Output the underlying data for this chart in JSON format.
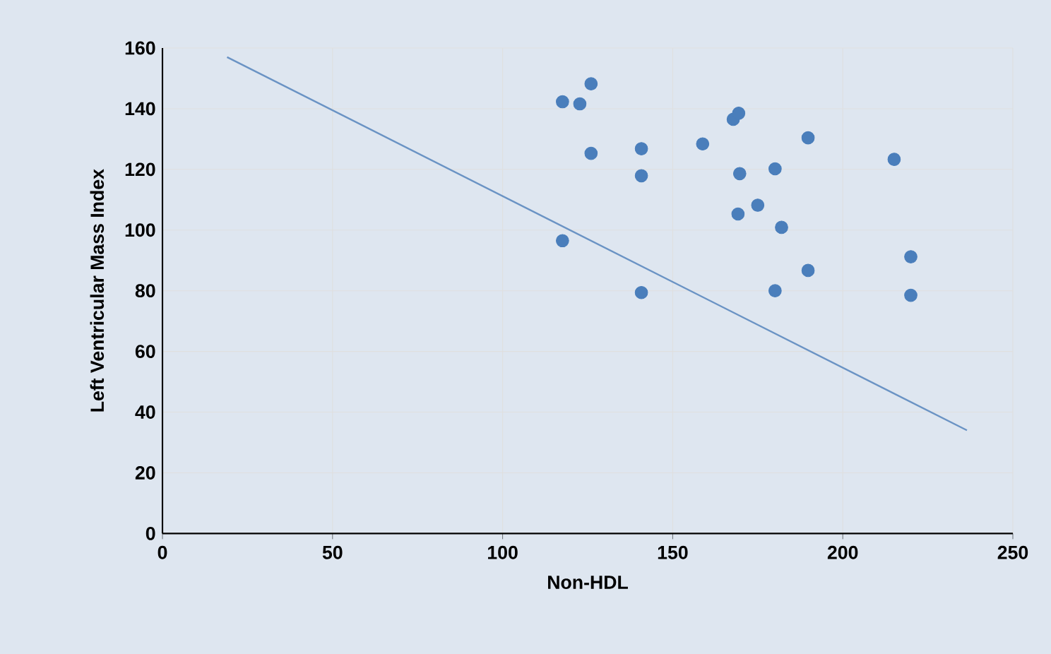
{
  "chart_data": {
    "type": "scatter",
    "xlabel": "Non-HDL",
    "ylabel": "Left Ventricular Mass Index",
    "xlim": [
      0,
      250
    ],
    "ylim": [
      0,
      160
    ],
    "xticks": [
      0,
      50,
      100,
      150,
      200,
      250
    ],
    "yticks": [
      0,
      20,
      40,
      60,
      80,
      100,
      120,
      140,
      160
    ],
    "grid": true,
    "series": [
      {
        "marker": "circle",
        "color": "#4a7ebb",
        "x": [
          117.6,
          122.7,
          126,
          126,
          140.8,
          140.8,
          158.8,
          167.8,
          169.4,
          169.7,
          180.1,
          189.8,
          175,
          169.2,
          182,
          215.1,
          117.6,
          140.8,
          180.1,
          189.8,
          220,
          220
        ],
        "values": [
          142.3,
          141.6,
          148.2,
          125.3,
          126.8,
          117.9,
          128.4,
          136.5,
          138.5,
          118.6,
          120.2,
          130.4,
          108.2,
          105.3,
          100.9,
          123.3,
          96.5,
          79.4,
          80,
          86.7,
          91.2,
          78.5
        ]
      },
      {
        "type": "line",
        "marker": "none",
        "color": "#6a93c4",
        "x": [
          19,
          236.5
        ],
        "values": [
          157,
          34
        ]
      }
    ]
  }
}
